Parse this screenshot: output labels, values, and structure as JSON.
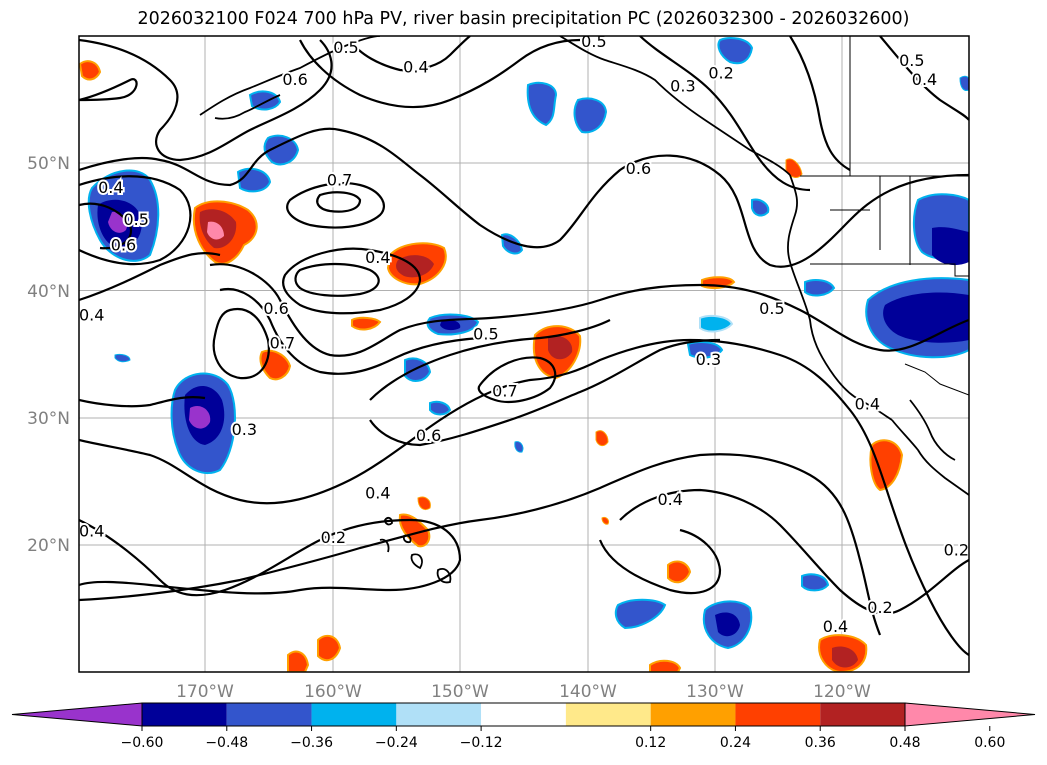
{
  "title": "2026032100 F024 700 hPa PV, river basin precipitation PC (2026032300 - 2026032600)",
  "map": {
    "region": "North Pacific and western North America",
    "latitude_labels": [
      "50°N",
      "40°N",
      "30°N",
      "20°N"
    ],
    "longitude_labels": [
      "170°W",
      "160°W",
      "150°W",
      "140°W",
      "130°W",
      "120°W"
    ],
    "pv_contour_labels": [
      {
        "value": "0.4",
        "lat": 48,
        "lon": -177.5
      },
      {
        "value": "0.5",
        "lat": 45.5,
        "lon": -175.5
      },
      {
        "value": "0.6",
        "lat": 43.5,
        "lon": -176.5
      },
      {
        "value": "0.7",
        "lat": 48.6,
        "lon": -159.5
      },
      {
        "value": "0.6",
        "lat": 56.5,
        "lon": -163
      },
      {
        "value": "0.5",
        "lat": 59,
        "lon": -159
      },
      {
        "value": "0.4",
        "lat": 57.5,
        "lon": -153.5
      },
      {
        "value": "0.5",
        "lat": 59.5,
        "lon": -139.5
      },
      {
        "value": "0.3",
        "lat": 56,
        "lon": -132.5
      },
      {
        "value": "0.2",
        "lat": 57,
        "lon": -129.5
      },
      {
        "value": "0.5",
        "lat": 58,
        "lon": -114.5
      },
      {
        "value": "0.4",
        "lat": 56.5,
        "lon": -113.5
      },
      {
        "value": "0.6",
        "lat": 49.5,
        "lon": -136
      },
      {
        "value": "0.4",
        "lat": 38,
        "lon": -179
      },
      {
        "value": "0.4",
        "lat": 42.5,
        "lon": -156.5
      },
      {
        "value": "0.6",
        "lat": 38.5,
        "lon": -164.5
      },
      {
        "value": "0.7",
        "lat": 35.8,
        "lon": -164
      },
      {
        "value": "0.5",
        "lat": 36.5,
        "lon": -148
      },
      {
        "value": "0.7",
        "lat": 32,
        "lon": -146.5
      },
      {
        "value": "0.6",
        "lat": 28.5,
        "lon": -152.5
      },
      {
        "value": "0.3",
        "lat": 29,
        "lon": -167
      },
      {
        "value": "0.3",
        "lat": 34.5,
        "lon": -130.5
      },
      {
        "value": "0.5",
        "lat": 38.5,
        "lon": -125.5
      },
      {
        "value": "0.4",
        "lat": 31,
        "lon": -118
      },
      {
        "value": "0.4",
        "lat": 24,
        "lon": -156.5
      },
      {
        "value": "0.2",
        "lat": 20.5,
        "lon": -160
      },
      {
        "value": "0.4",
        "lat": 23.5,
        "lon": -133.5
      },
      {
        "value": "0.4",
        "lat": 21,
        "lon": -179
      },
      {
        "value": "0.2",
        "lat": 19.5,
        "lon": -111
      },
      {
        "value": "0.2",
        "lat": 15,
        "lon": -117
      },
      {
        "value": "0.4",
        "lat": 13.5,
        "lon": -120.5
      }
    ],
    "colors": {
      "contour": "#000000",
      "coast": "#000000",
      "grid": "#b0b0b0",
      "frame": "#000000"
    }
  },
  "colorbar": {
    "ticks": [
      "−0.60",
      "−0.48",
      "−0.36",
      "−0.24",
      "−0.12",
      "0.12",
      "0.24",
      "0.36",
      "0.48",
      "0.60"
    ],
    "bins": [
      {
        "range": "< -0.60",
        "color": "#9933cc"
      },
      {
        "range": "-0.60 to -0.48",
        "color": "#000099"
      },
      {
        "range": "-0.48 to -0.36",
        "color": "#3355cc"
      },
      {
        "range": "-0.36 to -0.24",
        "color": "#00b2ee"
      },
      {
        "range": "-0.24 to -0.12",
        "color": "#b0e0f7"
      },
      {
        "range": "-0.12 to 0.12",
        "color": "#ffffff"
      },
      {
        "range": "0.12 to 0.24",
        "color": "#ffe98a"
      },
      {
        "range": "0.24 to 0.36",
        "color": "#ffa000"
      },
      {
        "range": "0.36 to 0.48",
        "color": "#ff4000"
      },
      {
        "range": "0.48 to 0.60",
        "color": "#b22222"
      },
      {
        "range": "> 0.60",
        "color": "#ff88aa"
      }
    ]
  }
}
